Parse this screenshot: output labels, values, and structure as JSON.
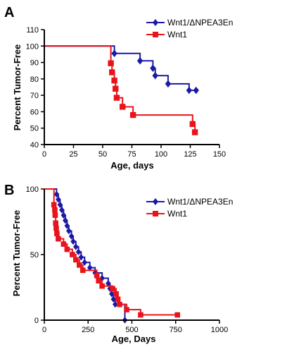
{
  "colors": {
    "blue": "#1a1aa6",
    "red": "#e8141b"
  },
  "chart_data": [
    {
      "panel_label": "A",
      "type": "line",
      "step": true,
      "xlabel": "Age, days",
      "ylabel": "Percent Tumor-Free",
      "xlim": [
        0,
        150
      ],
      "ylim": [
        40,
        110
      ],
      "xticks": [
        "0",
        "25",
        "50",
        "75",
        "100",
        "125",
        "150"
      ],
      "yticks": [
        "40",
        "50",
        "60",
        "70",
        "80",
        "90",
        "100",
        "110"
      ],
      "legend_position": "top-right",
      "series": [
        {
          "name": "Wnt1/ΔNPEA3En",
          "color": "#1a1aa6",
          "marker": "diamond",
          "x": [
            0,
            60,
            82,
            93,
            95,
            106,
            124,
            130
          ],
          "y": [
            100,
            95.5,
            91,
            86.5,
            82,
            77,
            73,
            73
          ]
        },
        {
          "name": "Wnt1",
          "color": "#e8141b",
          "marker": "square",
          "x": [
            0,
            57,
            58,
            60,
            61,
            62,
            67,
            76,
            127,
            129
          ],
          "y": [
            100,
            89.5,
            84,
            79,
            74,
            68.5,
            63,
            58,
            52.5,
            47.5
          ]
        }
      ]
    },
    {
      "panel_label": "B",
      "type": "line",
      "step": true,
      "xlabel": "Age, Days",
      "ylabel": "Percent Tumor-Free",
      "xlim": [
        0,
        1000
      ],
      "ylim": [
        0,
        100
      ],
      "xticks": [
        "0",
        "250",
        "500",
        "750",
        "1000"
      ],
      "yticks": [
        "0",
        "50",
        "100"
      ],
      "legend_position": "top-right",
      "series": [
        {
          "name": "Wnt1/ΔNPEA3En",
          "color": "#1a1aa6",
          "marker": "diamond",
          "x": [
            0,
            70,
            80,
            90,
            100,
            110,
            120,
            130,
            140,
            155,
            165,
            180,
            195,
            210,
            230,
            260,
            290,
            330,
            365,
            375,
            385,
            395,
            405,
            460
          ],
          "y": [
            100,
            96,
            92,
            88,
            84,
            80,
            76,
            72,
            68,
            64,
            60,
            56,
            52,
            48,
            44,
            40,
            36,
            32,
            28,
            24,
            20,
            16,
            12,
            0
          ]
        },
        {
          "name": "Wnt1",
          "color": "#e8141b",
          "marker": "square",
          "x": [
            0,
            55,
            60,
            62,
            65,
            68,
            72,
            80,
            110,
            130,
            160,
            180,
            200,
            220,
            300,
            310,
            330,
            390,
            410,
            420,
            430,
            470,
            550,
            760
          ],
          "y": [
            100,
            88,
            84,
            80,
            74,
            70,
            66,
            62,
            58,
            54,
            50,
            46,
            42,
            38,
            34,
            30,
            26,
            24,
            20,
            16,
            12,
            8,
            4,
            4
          ]
        }
      ]
    }
  ]
}
